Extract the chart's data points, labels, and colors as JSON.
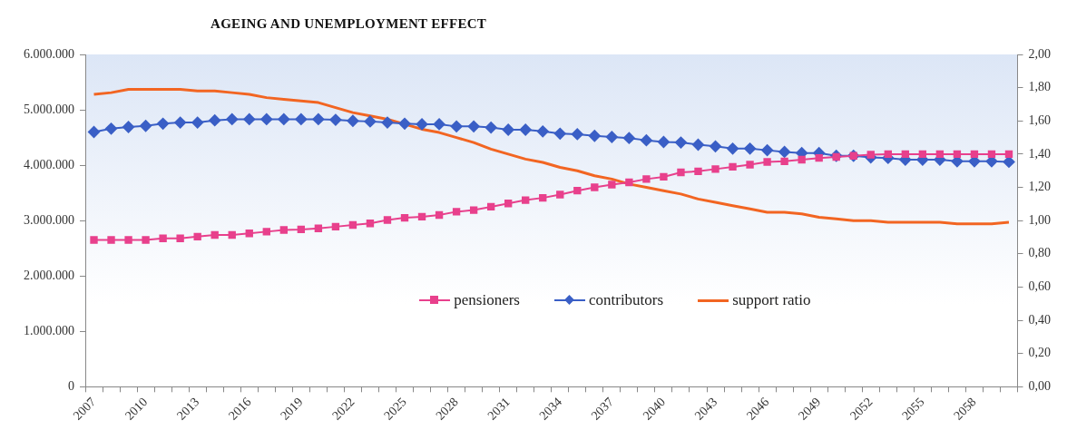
{
  "chart_data": {
    "type": "line",
    "title": "AGEING AND UNEMPLOYMENT EFFECT",
    "categories": [
      "2007",
      null,
      null,
      "2010",
      null,
      null,
      "2013",
      null,
      null,
      "2016",
      null,
      null,
      "2019",
      null,
      null,
      "2022",
      null,
      null,
      "2025",
      null,
      null,
      "2028",
      null,
      null,
      "2031",
      null,
      null,
      "2034",
      null,
      null,
      "2037",
      null,
      null,
      "2040",
      null,
      null,
      "2043",
      null,
      null,
      "2046",
      null,
      null,
      "2049",
      null,
      null,
      "2052",
      null,
      null,
      "2055",
      null,
      null,
      "2058",
      null,
      null
    ],
    "series": [
      {
        "name": "pensioners",
        "color": "#e8408c",
        "marker": "square",
        "values": [
          2650000,
          2650000,
          2650000,
          2650000,
          2680000,
          2680000,
          2710000,
          2740000,
          2740000,
          2770000,
          2800000,
          2830000,
          2840000,
          2860000,
          2890000,
          2920000,
          2950000,
          3010000,
          3050000,
          3070000,
          3100000,
          3160000,
          3190000,
          3250000,
          3310000,
          3370000,
          3410000,
          3470000,
          3540000,
          3600000,
          3650000,
          3690000,
          3750000,
          3790000,
          3870000,
          3890000,
          3930000,
          3970000,
          4010000,
          4060000,
          4070000,
          4100000,
          4130000,
          4150000,
          4170000,
          4190000,
          4200000,
          4200000,
          4200000,
          4200000,
          4200000,
          4200000,
          4200000,
          4200000
        ]
      },
      {
        "name": "contributors",
        "color": "#3a5fc6",
        "marker": "diamond",
        "values": [
          4600000,
          4660000,
          4690000,
          4710000,
          4750000,
          4770000,
          4770000,
          4810000,
          4830000,
          4830000,
          4830000,
          4830000,
          4830000,
          4830000,
          4820000,
          4800000,
          4790000,
          4770000,
          4750000,
          4740000,
          4740000,
          4700000,
          4700000,
          4680000,
          4640000,
          4640000,
          4610000,
          4570000,
          4560000,
          4530000,
          4510000,
          4490000,
          4450000,
          4420000,
          4410000,
          4370000,
          4340000,
          4300000,
          4300000,
          4270000,
          4240000,
          4220000,
          4220000,
          4170000,
          4170000,
          4140000,
          4130000,
          4100000,
          4100000,
          4100000,
          4070000,
          4070000,
          4070000,
          4060000
        ]
      },
      {
        "name": "support ratio",
        "color": "#f26522",
        "marker": "none",
        "axis": "y2",
        "values": [
          1.76,
          1.77,
          1.79,
          1.79,
          1.79,
          1.79,
          1.78,
          1.78,
          1.77,
          1.76,
          1.74,
          1.73,
          1.72,
          1.71,
          1.68,
          1.65,
          1.63,
          1.61,
          1.58,
          1.55,
          1.53,
          1.5,
          1.47,
          1.43,
          1.4,
          1.37,
          1.35,
          1.32,
          1.3,
          1.27,
          1.25,
          1.22,
          1.2,
          1.18,
          1.16,
          1.13,
          1.11,
          1.09,
          1.07,
          1.05,
          1.05,
          1.04,
          1.02,
          1.01,
          1,
          1,
          0.99,
          0.99,
          0.99,
          0.99,
          0.98,
          0.98,
          0.98,
          0.99
        ]
      }
    ],
    "ylim": [
      0,
      6000000
    ],
    "yticks": [
      {
        "value": 0,
        "label": "0"
      },
      {
        "value": 1000000,
        "label": "1.000.000"
      },
      {
        "value": 2000000,
        "label": "2.000.000"
      },
      {
        "value": 3000000,
        "label": "3.000.000"
      },
      {
        "value": 4000000,
        "label": "4.000.000"
      },
      {
        "value": 5000000,
        "label": "5.000.000"
      },
      {
        "value": 6000000,
        "label": "6.000.000"
      }
    ],
    "y2lim": [
      0,
      2
    ],
    "y2ticks": [
      {
        "value": 0,
        "label": "0,00"
      },
      {
        "value": 0.2,
        "label": "0,20"
      },
      {
        "value": 0.4,
        "label": "0,40"
      },
      {
        "value": 0.6,
        "label": "0,60"
      },
      {
        "value": 0.8,
        "label": "0,80"
      },
      {
        "value": 1,
        "label": "1,00"
      },
      {
        "value": 1.2,
        "label": "1,20"
      },
      {
        "value": 1.4,
        "label": "1,40"
      },
      {
        "value": 1.6,
        "label": "1,60"
      },
      {
        "value": 1.8,
        "label": "1,80"
      },
      {
        "value": 2,
        "label": "2,00"
      }
    ],
    "grid": false,
    "legend": "bottom"
  }
}
